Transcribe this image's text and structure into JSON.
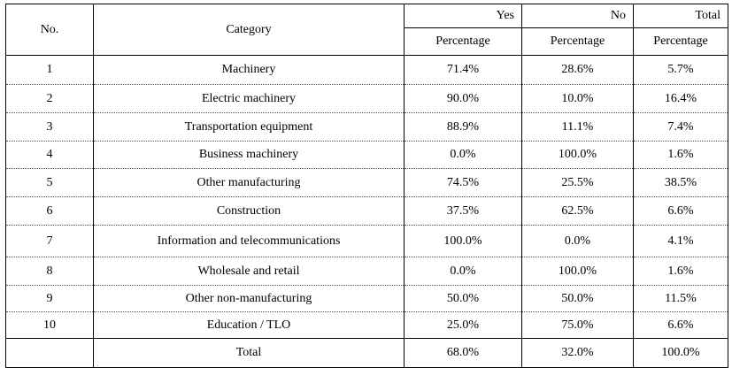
{
  "header": {
    "no": "No.",
    "category": "Category",
    "groups": [
      "Yes",
      "No",
      "Total"
    ],
    "sub": "Percentage"
  },
  "rows": [
    {
      "no": "1",
      "category": "Machinery",
      "yes": "71.4%",
      "no_pct": "28.6%",
      "total": "5.7%"
    },
    {
      "no": "2",
      "category": "Electric machinery",
      "yes": "90.0%",
      "no_pct": "10.0%",
      "total": "16.4%"
    },
    {
      "no": "3",
      "category": "Transportation equipment",
      "yes": "88.9%",
      "no_pct": "11.1%",
      "total": "7.4%"
    },
    {
      "no": "4",
      "category": "Business machinery",
      "yes": "0.0%",
      "no_pct": "100.0%",
      "total": "1.6%"
    },
    {
      "no": "5",
      "category": "Other manufacturing",
      "yes": "74.5%",
      "no_pct": "25.5%",
      "total": "38.5%"
    },
    {
      "no": "6",
      "category": "Construction",
      "yes": "37.5%",
      "no_pct": "62.5%",
      "total": "6.6%"
    },
    {
      "no": "7",
      "category": "Information and telecommunications",
      "yes": "100.0%",
      "no_pct": "0.0%",
      "total": "4.1%"
    },
    {
      "no": "8",
      "category": "Wholesale and retail",
      "yes": "0.0%",
      "no_pct": "100.0%",
      "total": "1.6%"
    },
    {
      "no": "9",
      "category": "Other non-manufacturing",
      "yes": "50.0%",
      "no_pct": "50.0%",
      "total": "11.5%"
    },
    {
      "no": "10",
      "category": "Education / TLO",
      "yes": "25.0%",
      "no_pct": "75.0%",
      "total": "6.6%"
    }
  ],
  "total": {
    "label": "Total",
    "yes": "68.0%",
    "no_pct": "32.0%",
    "total": "100.0%"
  }
}
